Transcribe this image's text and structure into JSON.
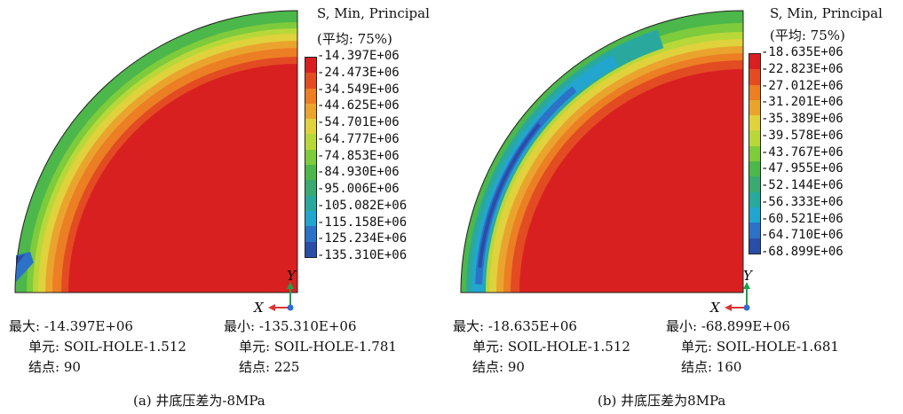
{
  "panels": [
    {
      "legend": {
        "title": "S, Min, Principal",
        "avg": "(平均: 75%)",
        "colors": [
          "#d92020",
          "#e34b23",
          "#ec7e24",
          "#eaa42e",
          "#e0d23c",
          "#b8d83a",
          "#7ecb3c",
          "#4cb74a",
          "#3aaa70",
          "#29a99e",
          "#22a6cf",
          "#2c72c7",
          "#2a4ea6"
        ],
        "values": [
          "-14.397E+06",
          "-24.473E+06",
          "-34.549E+06",
          "-44.625E+06",
          "-54.701E+06",
          "-64.777E+06",
          "-74.853E+06",
          "-84.930E+06",
          "-95.006E+06",
          "-105.082E+06",
          "-115.158E+06",
          "-125.234E+06",
          "-135.310E+06"
        ]
      },
      "max_label": "最大: -14.397E+06",
      "max_element": "单元: SOIL-HOLE-1.512",
      "max_node": "结点: 90",
      "min_label": "最小: -135.310E+06",
      "min_element": "单元: SOIL-HOLE-1.781",
      "min_node": "结点: 225",
      "caption": "(a) 井底压差为-8MPa",
      "axis_x": "X",
      "axis_y": "Y"
    },
    {
      "legend": {
        "title": "S, Min, Principal",
        "avg": "(平均: 75%)",
        "colors": [
          "#d92020",
          "#e34b23",
          "#ec7e24",
          "#eaa42e",
          "#e0d23c",
          "#b8d83a",
          "#7ecb3c",
          "#4cb74a",
          "#3aaa70",
          "#29a99e",
          "#22a6cf",
          "#2c72c7",
          "#2a4ea6"
        ],
        "values": [
          "-18.635E+06",
          "-22.823E+06",
          "-27.012E+06",
          "-31.201E+06",
          "-35.389E+06",
          "-39.578E+06",
          "-43.767E+06",
          "-47.955E+06",
          "-52.144E+06",
          "-56.333E+06",
          "-60.521E+06",
          "-64.710E+06",
          "-68.899E+06"
        ]
      },
      "max_label": "最大: -18.635E+06",
      "max_element": "单元: SOIL-HOLE-1.512",
      "max_node": "结点: 90",
      "min_label": "最小: -68.899E+06",
      "min_element": "单元: SOIL-HOLE-1.681",
      "min_node": "结点: 160",
      "caption": "(b) 井底压差为8MPa",
      "axis_x": "X",
      "axis_y": "Y"
    }
  ]
}
